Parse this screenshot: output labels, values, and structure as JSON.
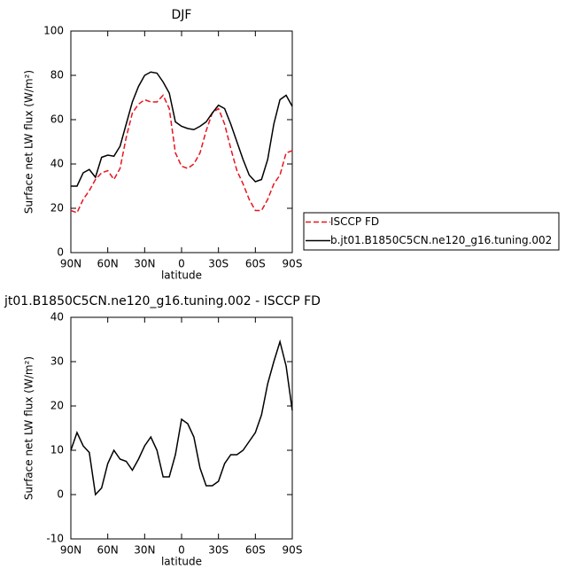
{
  "chart_data": [
    {
      "type": "line",
      "title": "DJF",
      "x_label": "latitude",
      "y_label": "Surface net LW flux (W/m²)",
      "x": [
        90,
        85,
        80,
        75,
        70,
        65,
        60,
        55,
        50,
        45,
        40,
        35,
        30,
        25,
        20,
        15,
        10,
        5,
        0,
        -5,
        -10,
        -15,
        -20,
        -25,
        -30,
        -35,
        -40,
        -45,
        -50,
        -55,
        -60,
        -65,
        -70,
        -75,
        -80,
        -85,
        -90
      ],
      "xlim": [
        90,
        -90
      ],
      "xticks": [
        {
          "value": 90,
          "label": "90N"
        },
        {
          "value": 60,
          "label": "60N"
        },
        {
          "value": 30,
          "label": "30N"
        },
        0,
        {
          "value": -30,
          "label": "30S"
        },
        {
          "value": -60,
          "label": "60S"
        },
        {
          "value": -90,
          "label": "90S"
        }
      ],
      "ylim": [
        0,
        100
      ],
      "yticks": [
        0,
        20,
        40,
        60,
        80,
        100
      ],
      "legend": "right",
      "series": [
        {
          "name": "ISCCP FD",
          "color": "#e8141e",
          "dash": true,
          "values": [
            19,
            18,
            24,
            28,
            33,
            36,
            37,
            33,
            38,
            52,
            63,
            67,
            69,
            68,
            68,
            71,
            65,
            45,
            39,
            38,
            40,
            45,
            55,
            63,
            65,
            58,
            47,
            37,
            31,
            24,
            19,
            19,
            24,
            31,
            35,
            45,
            46
          ]
        },
        {
          "name": "b.jt01.B1850C5CN.ne120_g16.tuning.002",
          "color": "#000000",
          "dash": false,
          "values": [
            30,
            30,
            36,
            37.5,
            34,
            43,
            44,
            43.5,
            48,
            58,
            68,
            75,
            80,
            81.5,
            81,
            77,
            72,
            59,
            57,
            56,
            55.5,
            57,
            59,
            63,
            66.5,
            65,
            58,
            50,
            42,
            35,
            32,
            33,
            42,
            58,
            69,
            71,
            66
          ]
        }
      ]
    },
    {
      "type": "line",
      "title": "jt01.B1850C5CN.ne120_g16.tuning.002 - ISCCP FD",
      "x_label": "latitude",
      "y_label": "Surface net LW flux (W/m²)",
      "x": [
        90,
        85,
        80,
        75,
        70,
        65,
        60,
        55,
        50,
        45,
        40,
        35,
        30,
        25,
        20,
        15,
        10,
        5,
        0,
        -5,
        -10,
        -15,
        -20,
        -25,
        -30,
        -35,
        -40,
        -45,
        -50,
        -55,
        -60,
        -65,
        -70,
        -75,
        -80,
        -85,
        -90
      ],
      "xlim": [
        90,
        -90
      ],
      "xticks": [
        {
          "value": 90,
          "label": "90N"
        },
        {
          "value": 60,
          "label": "60N"
        },
        {
          "value": 30,
          "label": "30N"
        },
        0,
        {
          "value": -30,
          "label": "30S"
        },
        {
          "value": -60,
          "label": "60S"
        },
        {
          "value": -90,
          "label": "90S"
        }
      ],
      "ylim": [
        -10,
        40
      ],
      "yticks": [
        -10,
        0,
        10,
        20,
        30,
        40
      ],
      "color": "#000000",
      "values": [
        10,
        14,
        11,
        9.5,
        0,
        1.5,
        7,
        10,
        8,
        7.5,
        5.5,
        8,
        11,
        13,
        10,
        4,
        4,
        9,
        17,
        16,
        13,
        6,
        2,
        2,
        3,
        7,
        9,
        9,
        10,
        12,
        14,
        18,
        25,
        30,
        34.5,
        29,
        19
      ]
    }
  ]
}
